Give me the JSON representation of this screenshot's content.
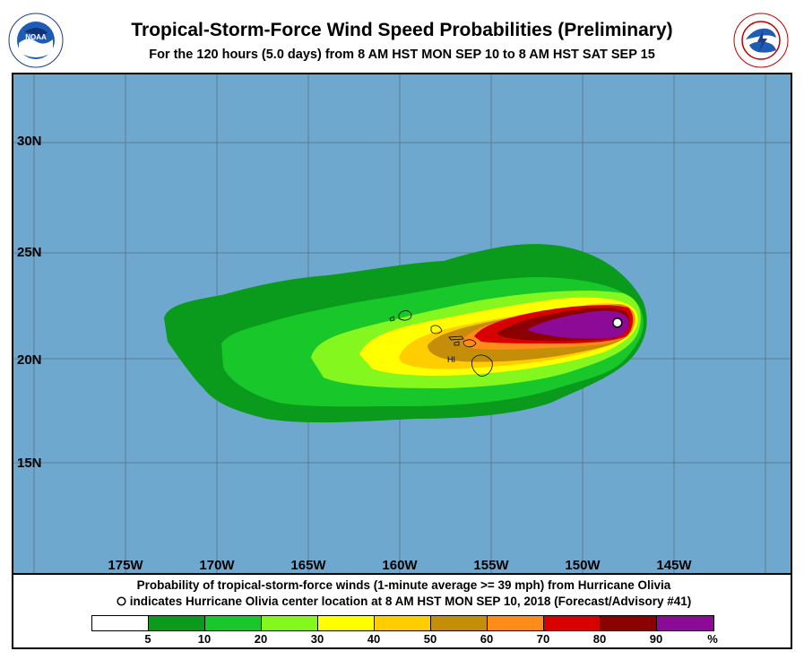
{
  "header": {
    "title": "Tropical-Storm-Force Wind Speed Probabilities (Preliminary)",
    "subtitle": "For the 120 hours (5.0 days) from 8 AM HST MON SEP 10 to 8 AM HST SAT SEP 15"
  },
  "logos": {
    "left": {
      "icon": "noaa-logo-icon",
      "text": "NOAA",
      "ring_text": "NATIONAL OCEANIC AND ATMOSPHERIC ADMINISTRATION U.S. DEPARTMENT OF COMMERCE"
    },
    "right": {
      "icon": "nws-logo-icon",
      "ring_text": "NATIONAL WEATHER SERVICE"
    }
  },
  "map": {
    "ocean_color": "#6fa8cf",
    "lat_labels": [
      "30N",
      "25N",
      "20N",
      "15N"
    ],
    "lon_labels": [
      "175W",
      "170W",
      "165W",
      "160W",
      "155W",
      "150W",
      "145W"
    ],
    "state_label": "HI",
    "storm_center": {
      "lon": -148.1,
      "lat": 21.7
    }
  },
  "footer": {
    "line1": "Probability of tropical-storm-force winds (1-minute average >= 39 mph) from Hurricane Olivia",
    "line2": "indicates Hurricane Olivia center location at 8 AM HST MON SEP 10, 2018 (Forecast/Advisory #41)",
    "marker_icon": "open-circle-icon"
  },
  "legend": {
    "colors": [
      "#ffffff",
      "#0a9a1c",
      "#18c82a",
      "#84f71e",
      "#ffff00",
      "#ffcd00",
      "#c58e08",
      "#ff8c1a",
      "#d90000",
      "#8b0000",
      "#8c0a96"
    ],
    "labels": [
      "5",
      "10",
      "20",
      "30",
      "40",
      "50",
      "60",
      "70",
      "80",
      "90",
      "%"
    ]
  }
}
